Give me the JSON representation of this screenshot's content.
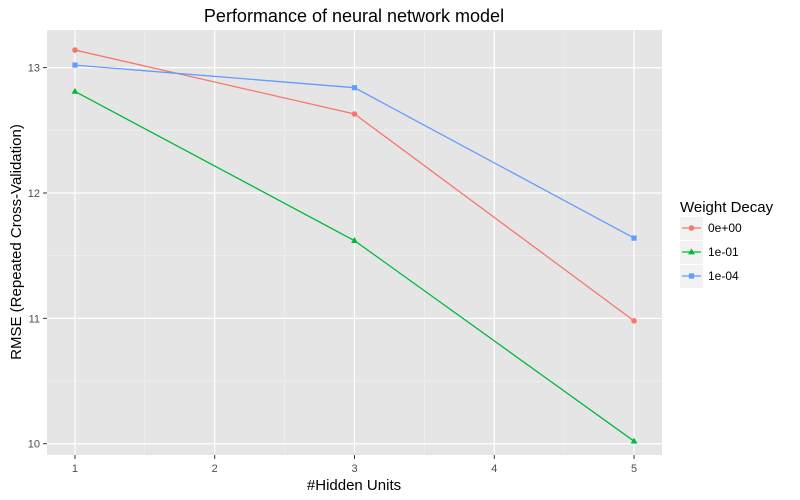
{
  "chart_data": {
    "type": "line",
    "title": "Performance of neural network model",
    "xlabel": "#Hidden Units",
    "ylabel": "RMSE (Repeated Cross-Validation)",
    "x": [
      1,
      3,
      5
    ],
    "xticks": [
      "1",
      "2",
      "3",
      "4",
      "5"
    ],
    "yticks": [
      "10",
      "11",
      "12",
      "13"
    ],
    "xlim": [
      0.8,
      5.2
    ],
    "ylim": [
      9.91,
      13.3
    ],
    "grid": true,
    "background": "#E5E5E5",
    "legend": {
      "title": "Weight Decay",
      "placement": "right"
    },
    "series": [
      {
        "name": "0e+00",
        "values": [
          13.14,
          12.63,
          10.98
        ],
        "color": "#F8766D",
        "marker": "circle"
      },
      {
        "name": "1e-01",
        "values": [
          12.81,
          11.62,
          10.02
        ],
        "color": "#00BA38",
        "marker": "triangle"
      },
      {
        "name": "1e-04",
        "values": [
          13.02,
          12.84,
          11.64
        ],
        "color": "#619CFF",
        "marker": "square"
      }
    ]
  }
}
